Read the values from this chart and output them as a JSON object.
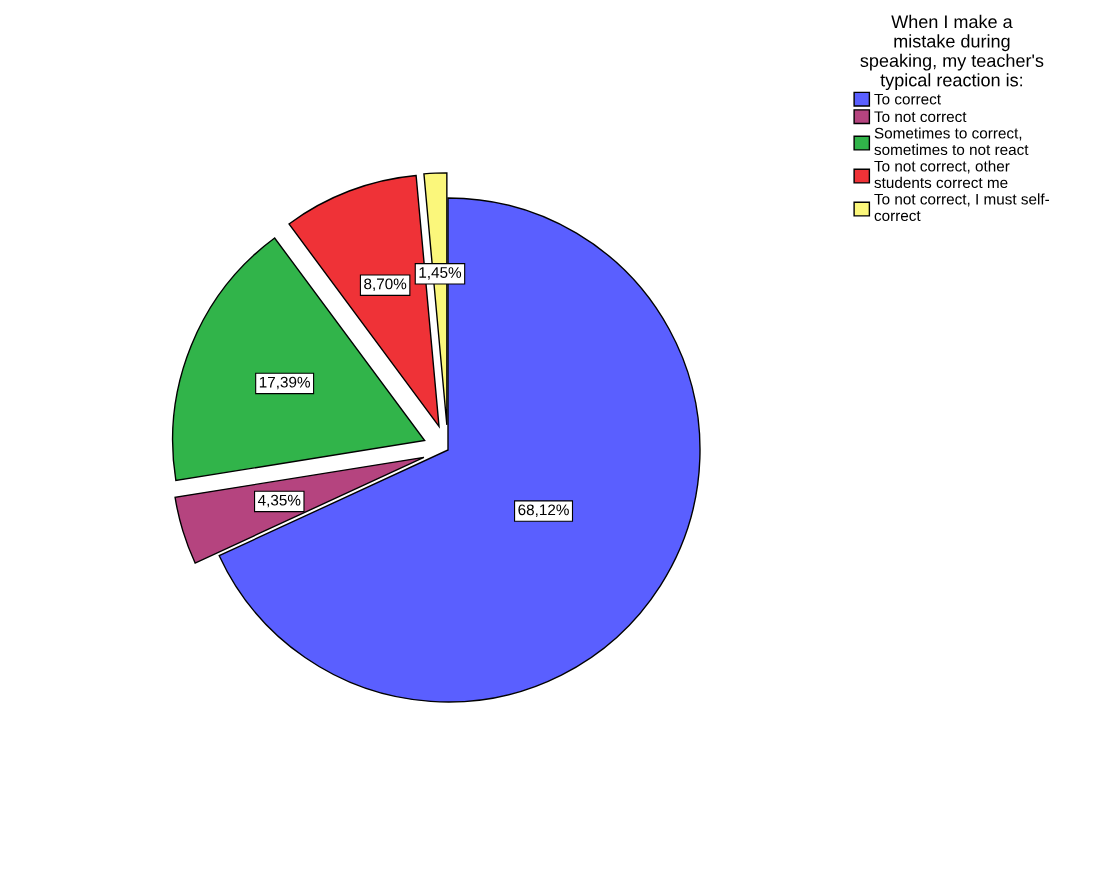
{
  "chart_data": {
    "type": "pie",
    "legend_title": "When I make a\nmistake during\nspeaking, my teacher's\ntypical reaction is:",
    "categories": [
      "To correct",
      "To not correct",
      "Sometimes to correct,\nsometimes to not react",
      "To not correct, other\nstudents correct me",
      "To not correct, I must self-\ncorrect"
    ],
    "values": [
      68.12,
      4.35,
      17.39,
      8.7,
      1.45
    ],
    "value_labels": [
      "68,12%",
      "4,35%",
      "17,39%",
      "8,70%",
      "1,45%"
    ],
    "colors": [
      "#5a5fff",
      "#b5447f",
      "#31b44a",
      "#ef3237",
      "#fbf77b"
    ],
    "legend": "right"
  }
}
